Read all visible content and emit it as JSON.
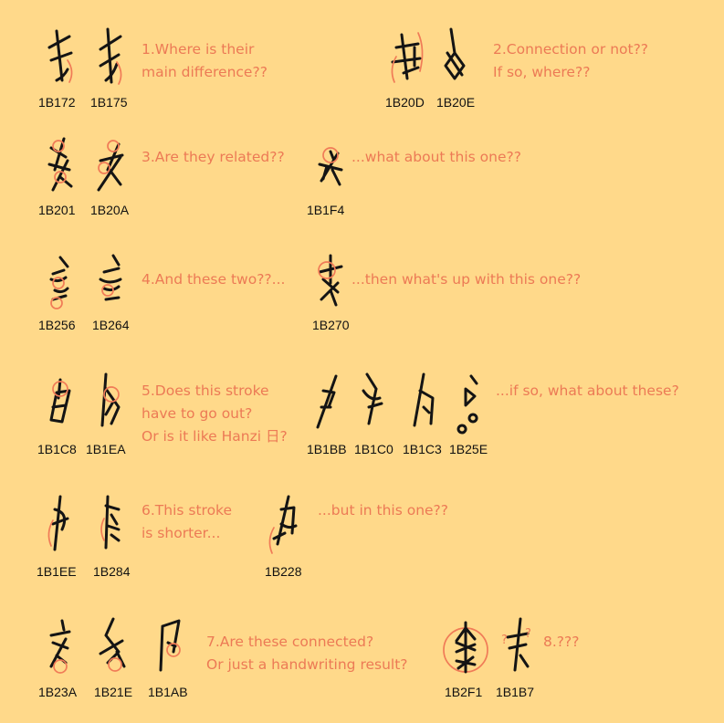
{
  "colors": {
    "background": "#ffd98a",
    "note_text": "#ec7a55",
    "mark": "#f07b57",
    "ink": "#141414"
  },
  "codes": {
    "c1B172": "1B172",
    "c1B175": "1B175",
    "c1B20D": "1B20D",
    "c1B20E": "1B20E",
    "c1B201": "1B201",
    "c1B20A": "1B20A",
    "c1B1F4": "1B1F4",
    "c1B256": "1B256",
    "c1B264": "1B264",
    "c1B270": "1B270",
    "c1B1C8": "1B1C8",
    "c1B1EA": "1B1EA",
    "c1B1BB": "1B1BB",
    "c1B1C0": "1B1C0",
    "c1B1C3": "1B1C3",
    "c1B25E": "1B25E",
    "c1B1EE": "1B1EE",
    "c1B284": "1B284",
    "c1B228": "1B228",
    "c1B23A": "1B23A",
    "c1B21E": "1B21E",
    "c1B1AB": "1B1AB",
    "c1B2F1": "1B2F1",
    "c1B1B7": "1B1B7"
  },
  "notes": {
    "n1": [
      "1.Where is their",
      "main difference??"
    ],
    "n2": [
      "2.Connection or not??",
      "If so, where??"
    ],
    "n3": "3.Are they related??",
    "n3b": "...what about this one??",
    "n4": "4.And these two??...",
    "n4b": "...then what's up with this one??",
    "n5": [
      "5.Does this stroke",
      "have to go out?",
      "Or is it like Hanzi 日?"
    ],
    "n5b": "...if so, what about these?",
    "n6": [
      "6.This stroke",
      "is shorter..."
    ],
    "n6b": "...but in this one??",
    "n7": [
      "7.Are these connected?",
      "Or just a handwriting result?"
    ],
    "n8": "8.???",
    "qmark": "?"
  }
}
